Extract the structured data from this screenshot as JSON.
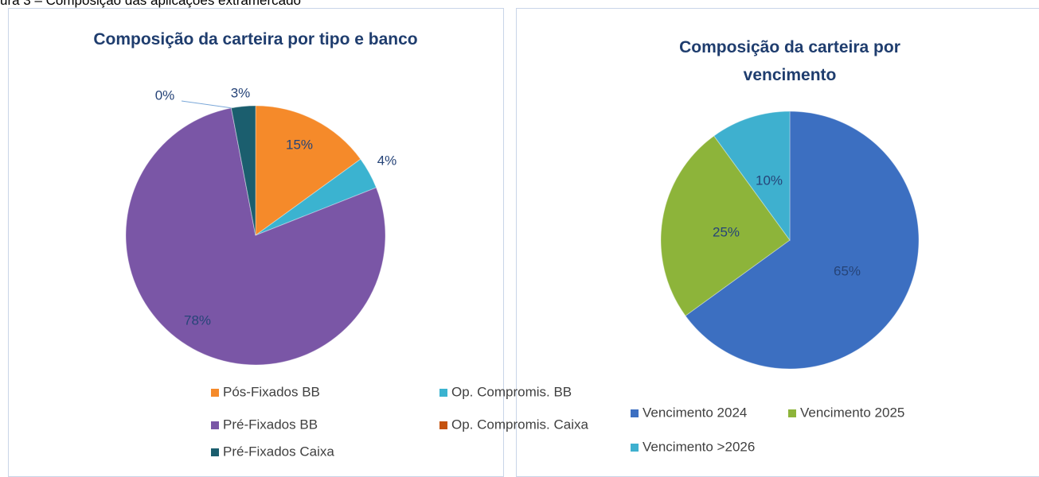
{
  "caption": "ura 3 – Composição das aplicações extramercado",
  "chart_data": [
    {
      "type": "pie",
      "title": "Composição da carteira por tipo e banco",
      "categories": [
        "Pós-Fixados BB",
        "Op. Compromis. BB",
        "Pré-Fixados BB",
        "Op. Compromis. Caixa",
        "Pré-Fixados Caixa"
      ],
      "values": [
        15,
        4,
        78,
        0,
        3
      ],
      "value_labels": [
        "15%",
        "4%",
        "78%",
        "0%",
        "3%"
      ],
      "colors": [
        "#f58a2a",
        "#3bb3d0",
        "#7a56a6",
        "#c5520f",
        "#1b5e6e"
      ]
    },
    {
      "type": "pie",
      "title": "Composição da carteira por vencimento",
      "categories": [
        "Vencimento 2024",
        "Vencimento 2025",
        "Vencimento >2026"
      ],
      "values": [
        65,
        25,
        10
      ],
      "value_labels": [
        "65%",
        "25%",
        "10%"
      ],
      "colors": [
        "#3c6fc1",
        "#8db43a",
        "#3eb0cf"
      ]
    }
  ]
}
